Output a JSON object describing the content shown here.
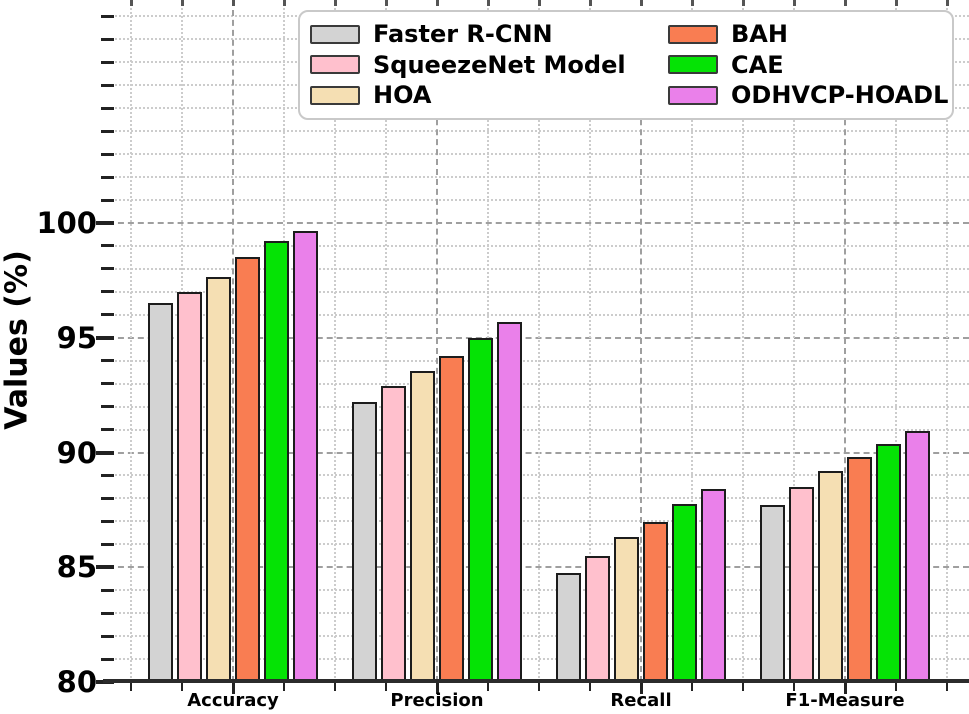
{
  "chart_data": {
    "type": "bar",
    "title": "",
    "xlabel": "",
    "ylabel": "Values (%)",
    "ylim": [
      80,
      100
    ],
    "visible_y_top": 109.7,
    "ytick_labels": [
      "80",
      "85",
      "90",
      "95",
      "100"
    ],
    "ytick_values": [
      80,
      85,
      90,
      95,
      100
    ],
    "minor_ytick_step": 1,
    "grid": {
      "major": "dashed",
      "minor": "dotted",
      "on": true
    },
    "legend_position": "top-center, 2 columns, column-major order",
    "categories": [
      "Accuracy",
      "Precision",
      "Recall",
      "F1-Measure"
    ],
    "series": [
      {
        "name": "Faster R-CNN",
        "color": "#d3d3d3",
        "values": [
          96.5,
          92.2,
          84.75,
          87.7
        ]
      },
      {
        "name": "SqueezeNet Model",
        "color": "#ffc0cd",
        "values": [
          97.0,
          92.9,
          85.5,
          88.5
        ]
      },
      {
        "name": "HOA",
        "color": "#f5dfb3",
        "values": [
          97.65,
          93.55,
          86.3,
          89.2
        ]
      },
      {
        "name": "BAH",
        "color": "#f97d52",
        "values": [
          98.5,
          94.2,
          86.95,
          89.8
        ]
      },
      {
        "name": "CAE",
        "color": "#05e305",
        "values": [
          99.2,
          95.0,
          87.75,
          90.35
        ]
      },
      {
        "name": "ODHVCP-HOADL",
        "color": "#ea80ea",
        "values": [
          99.65,
          95.7,
          88.4,
          90.95
        ]
      }
    ]
  },
  "colors": {
    "bar_edge": "#1c1c1c",
    "axis_spine": "#2b2b2b",
    "grid_minor": "#cccccc",
    "grid_major": "#9f9f9f",
    "legend_border": "#c9c9c9",
    "text": "#000000"
  }
}
